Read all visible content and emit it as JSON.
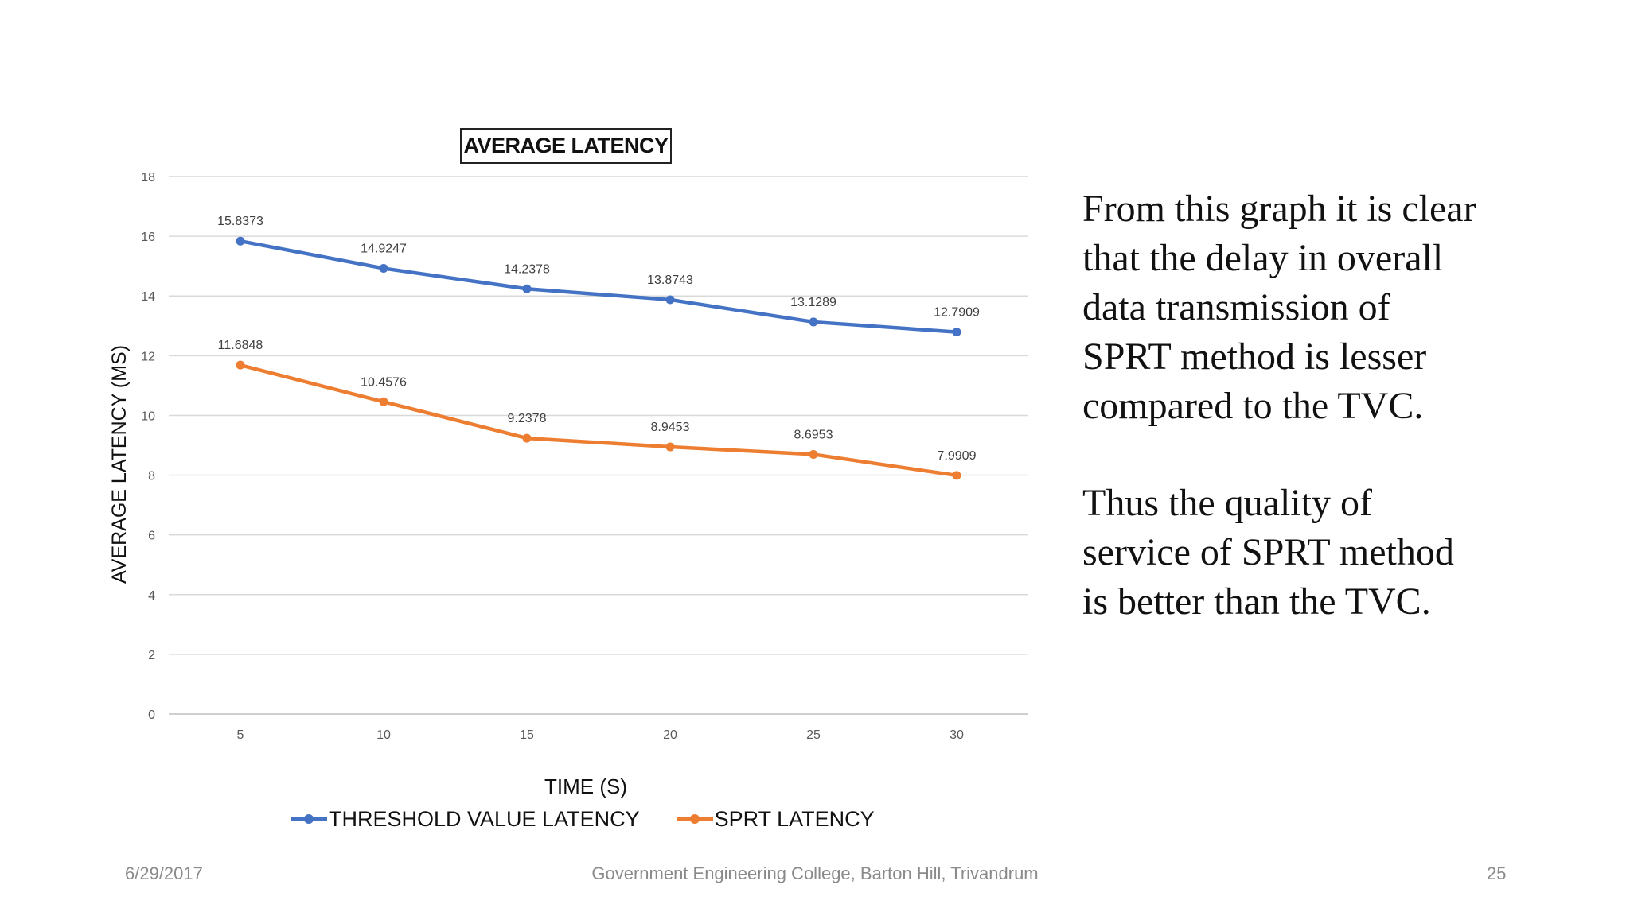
{
  "chart_data": {
    "type": "line",
    "title": "AVERAGE LATENCY",
    "xlabel": "TIME (S)",
    "ylabel": "AVERAGE LATENCY (MS)",
    "x": [
      5,
      10,
      15,
      20,
      25,
      30
    ],
    "ylim": [
      0,
      18
    ],
    "yticks": [
      0,
      2,
      4,
      6,
      8,
      10,
      12,
      14,
      16,
      18
    ],
    "grid": true,
    "legend_position": "bottom",
    "series": [
      {
        "name": "THRESHOLD VALUE LATENCY",
        "color": "#4472C4",
        "values": [
          15.8373,
          14.9247,
          14.2378,
          13.8743,
          13.1289,
          12.7909
        ],
        "labels": [
          "15.8373",
          "14.9247",
          "14.2378",
          "13.8743",
          "13.1289",
          "12.7909"
        ]
      },
      {
        "name": "SPRT LATENCY",
        "color": "#ED7D31",
        "values": [
          11.6848,
          10.4576,
          9.2378,
          8.9453,
          8.6953,
          7.9909
        ],
        "labels": [
          "11.6848",
          "10.4576",
          "9.2378",
          "8.9453",
          "8.6953",
          "7.9909"
        ]
      }
    ]
  },
  "side_text": {
    "paragraph1": "From this graph it is clear\nthat the delay in overall\ndata transmission  of\nSPRT method  is lesser\ncompared  to the TVC.",
    "paragraph2": "Thus  the quality of\nservice of SPRT method\nis better than the TVC."
  },
  "footer": {
    "date": "6/29/2017",
    "center": "Government  Engineering College, Barton Hill, Trivandrum",
    "page": "25"
  }
}
